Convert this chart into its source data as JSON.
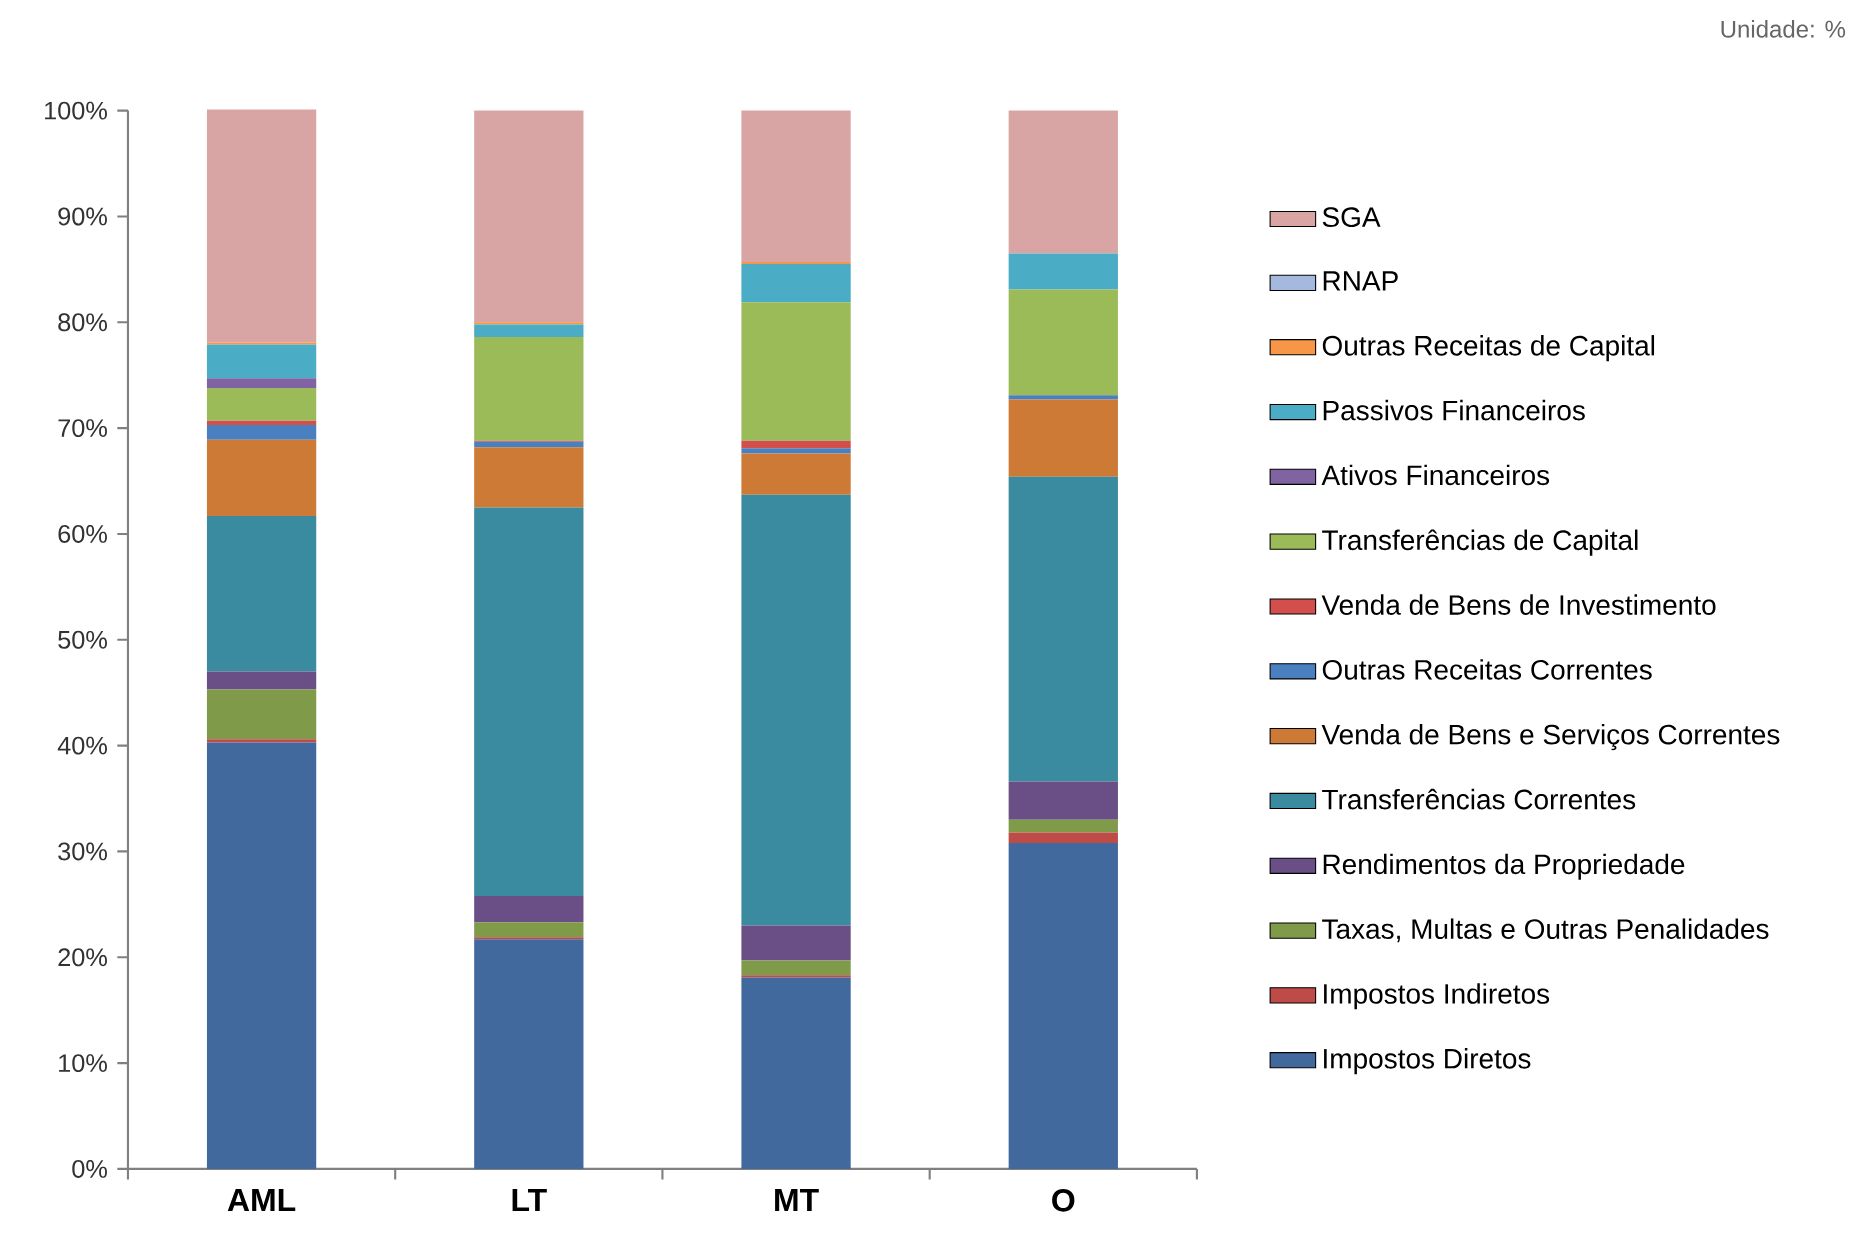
{
  "chart_data": {
    "type": "bar",
    "stacked": true,
    "categories": [
      "AML",
      "LT",
      "MT",
      "O"
    ],
    "ylim": [
      0,
      100
    ],
    "yticks": [
      {
        "value": 0,
        "label": "0%"
      },
      {
        "value": 10,
        "label": "10%"
      },
      {
        "value": 20,
        "label": "20%"
      },
      {
        "value": 30,
        "label": "30%"
      },
      {
        "value": 40,
        "label": "40%"
      },
      {
        "value": 50,
        "label": "50%"
      },
      {
        "value": 60,
        "label": "60%"
      },
      {
        "value": 70,
        "label": "70%"
      },
      {
        "value": 80,
        "label": "80%"
      },
      {
        "value": 90,
        "label": "90%"
      },
      {
        "value": 100,
        "label": "100%"
      }
    ],
    "legend": "right",
    "grid": false,
    "annotations": [
      "Unidade: %"
    ],
    "series": [
      {
        "name": "Impostos Diretos",
        "color": "#41699e",
        "values": [
          40.3,
          21.7,
          18.1,
          30.8
        ]
      },
      {
        "name": "Impostos Indiretos",
        "color": "#be4b48",
        "values": [
          0.3,
          0.2,
          0.2,
          1.0
        ]
      },
      {
        "name": "Taxas, Multas e Outras Penalidades",
        "color": "#7f9a48",
        "values": [
          4.7,
          1.4,
          1.4,
          1.2
        ]
      },
      {
        "name": "Rendimentos da Propriedade",
        "color": "#6a4f86",
        "values": [
          1.7,
          2.5,
          3.3,
          3.6
        ]
      },
      {
        "name": "Transferências Correntes",
        "color": "#3a8aa0",
        "values": [
          14.7,
          36.7,
          40.7,
          28.8
        ]
      },
      {
        "name": "Venda de Bens e Serviços Correntes",
        "color": "#cc7a35",
        "values": [
          7.2,
          5.7,
          3.9,
          7.3
        ]
      },
      {
        "name": "Outras Receitas Correntes",
        "color": "#4a7fc0",
        "values": [
          1.4,
          0.5,
          0.5,
          0.4
        ]
      },
      {
        "name": "Venda de Bens de Investimento",
        "color": "#d24f4c",
        "values": [
          0.4,
          0.1,
          0.7,
          0
        ]
      },
      {
        "name": "Transferências de Capital",
        "color": "#9bbb59",
        "values": [
          3.1,
          9.8,
          13.1,
          10.0
        ]
      },
      {
        "name": "Ativos Financeiros",
        "color": "#8064a2",
        "values": [
          0.9,
          0,
          0,
          0
        ]
      },
      {
        "name": "Passivos Financeiros",
        "color": "#4bacc6",
        "values": [
          3.2,
          1.2,
          3.6,
          3.4
        ]
      },
      {
        "name": "Outras Receitas de Capital",
        "color": "#f79646",
        "values": [
          0.2,
          0.2,
          0.2,
          0
        ]
      },
      {
        "name": "RNAP",
        "color": "#a5b8dd",
        "values": [
          0,
          0,
          0,
          0
        ]
      },
      {
        "name": "SGA",
        "color": "#d9a5a4",
        "values": [
          22.0,
          20.0,
          14.3,
          13.5
        ]
      }
    ]
  }
}
